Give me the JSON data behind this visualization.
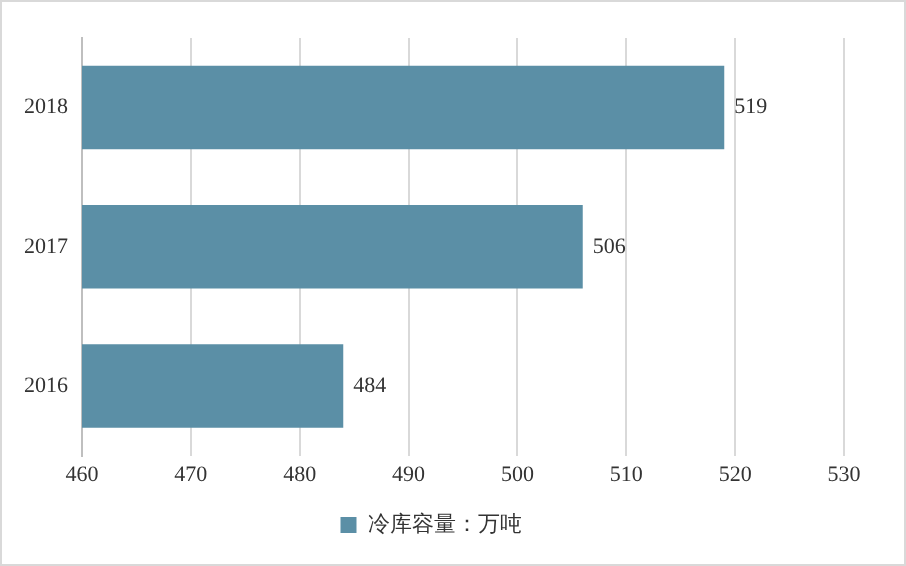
{
  "chart_data": {
    "type": "bar",
    "orientation": "horizontal",
    "categories": [
      "2018",
      "2017",
      "2016"
    ],
    "series": [
      {
        "name": "冷库容量：万吨",
        "color": "#5b8fa6",
        "values": [
          519,
          506,
          484
        ]
      }
    ],
    "xlim": [
      460,
      530
    ],
    "xticks": [
      460,
      470,
      480,
      490,
      500,
      510,
      520,
      530
    ],
    "grid": "x",
    "legend": "bottom",
    "data_labels": true
  }
}
